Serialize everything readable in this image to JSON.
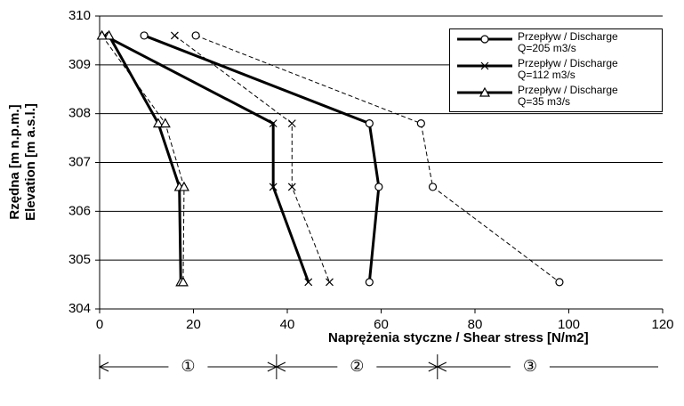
{
  "chart_data": {
    "type": "line",
    "y_label": "Rzędna [m n.p.m.]\nElevation [m a.s.l.]",
    "x_label": "Naprężenia styczne / Shear stress [N/m2]",
    "xlim": [
      0,
      120
    ],
    "xticks": [
      0,
      20,
      40,
      60,
      80,
      100,
      120
    ],
    "ylim": [
      304,
      310
    ],
    "yticks": [
      304,
      305,
      306,
      307,
      308,
      309,
      310
    ],
    "grid": true,
    "series": [
      {
        "name": "Przepływ / Discharge\nQ=205 m3/s",
        "color": "#000000",
        "marker": "circle",
        "dashed": false,
        "x": [
          9.5,
          57.5,
          59.5,
          57.5
        ],
        "values": [
          309.6,
          307.8,
          306.5,
          304.55
        ]
      },
      {
        "name": "Przepływ / Discharge\nQ=112 m3/s",
        "color": "#000000",
        "marker": "x",
        "dashed": false,
        "x": [
          1,
          37,
          37,
          44.5
        ],
        "values": [
          309.6,
          307.8,
          306.5,
          304.55
        ]
      },
      {
        "name": "Przepływ / Discharge\nQ=35 m3/s",
        "color": "#000000",
        "marker": "triangle",
        "dashed": false,
        "x": [
          2,
          12.5,
          17,
          17.3
        ],
        "values": [
          309.6,
          307.8,
          306.5,
          304.55
        ]
      },
      {
        "color": "#000000",
        "marker": "circle",
        "dashed": true,
        "x": [
          20.5,
          68.5,
          71,
          98
        ],
        "values": [
          309.6,
          307.8,
          306.5,
          304.55
        ]
      },
      {
        "color": "#000000",
        "marker": "x",
        "dashed": true,
        "x": [
          16,
          41,
          41,
          49
        ],
        "values": [
          309.6,
          307.8,
          306.5,
          304.55
        ]
      },
      {
        "color": "#000000",
        "marker": "triangle",
        "dashed": true,
        "x": [
          0.5,
          14,
          18,
          17.8
        ],
        "values": [
          309.6,
          307.8,
          306.5,
          304.55
        ]
      }
    ],
    "zones": [
      {
        "label": "①",
        "from": 0
      },
      {
        "label": "②",
        "from": 37.7
      },
      {
        "label": "③",
        "from": 72
      }
    ]
  }
}
